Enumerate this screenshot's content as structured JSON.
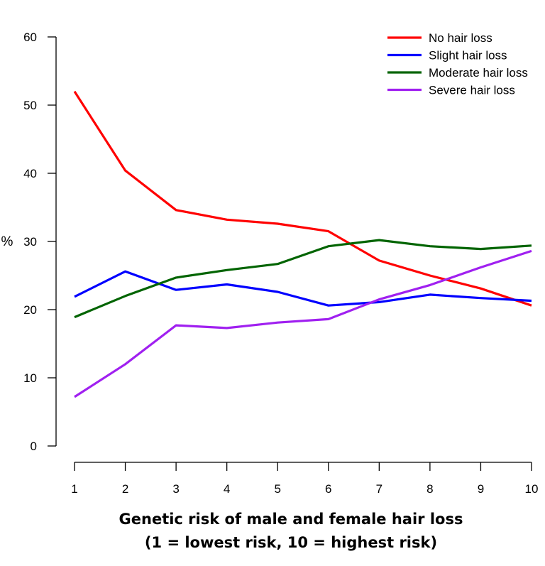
{
  "chart_data": {
    "type": "line",
    "x": [
      1,
      2,
      3,
      4,
      5,
      6,
      7,
      8,
      9,
      10
    ],
    "xticks": [
      "1",
      "2",
      "3",
      "4",
      "5",
      "6",
      "7",
      "8",
      "9",
      "10"
    ],
    "yticks": [
      "0",
      "10",
      "20",
      "30",
      "40",
      "50",
      "60"
    ],
    "ylim": [
      0,
      60
    ],
    "xlim": [
      1,
      10
    ],
    "ylabel": "%",
    "xlabel_line1": "Genetic risk of male and female hair loss",
    "xlabel_line2": "(1 = lowest risk, 10 = highest risk)",
    "legend_position": "top-right",
    "grid": false,
    "series": [
      {
        "name": "No hair loss",
        "color": "#ff0000",
        "values": [
          52.0,
          40.4,
          34.6,
          33.2,
          32.6,
          31.5,
          27.2,
          25.0,
          23.1,
          20.6
        ]
      },
      {
        "name": "Slight hair loss",
        "color": "#0000ff",
        "values": [
          21.9,
          25.6,
          22.9,
          23.7,
          22.6,
          20.6,
          21.1,
          22.2,
          21.7,
          21.3
        ]
      },
      {
        "name": "Moderate hair loss",
        "color": "#006400",
        "values": [
          18.9,
          22.0,
          24.7,
          25.8,
          26.7,
          29.3,
          30.2,
          29.3,
          28.9,
          29.4
        ]
      },
      {
        "name": "Severe hair loss",
        "color": "#a020f0",
        "values": [
          7.2,
          12.0,
          17.7,
          17.3,
          18.1,
          18.6,
          21.5,
          23.6,
          26.2,
          28.6
        ]
      }
    ]
  }
}
